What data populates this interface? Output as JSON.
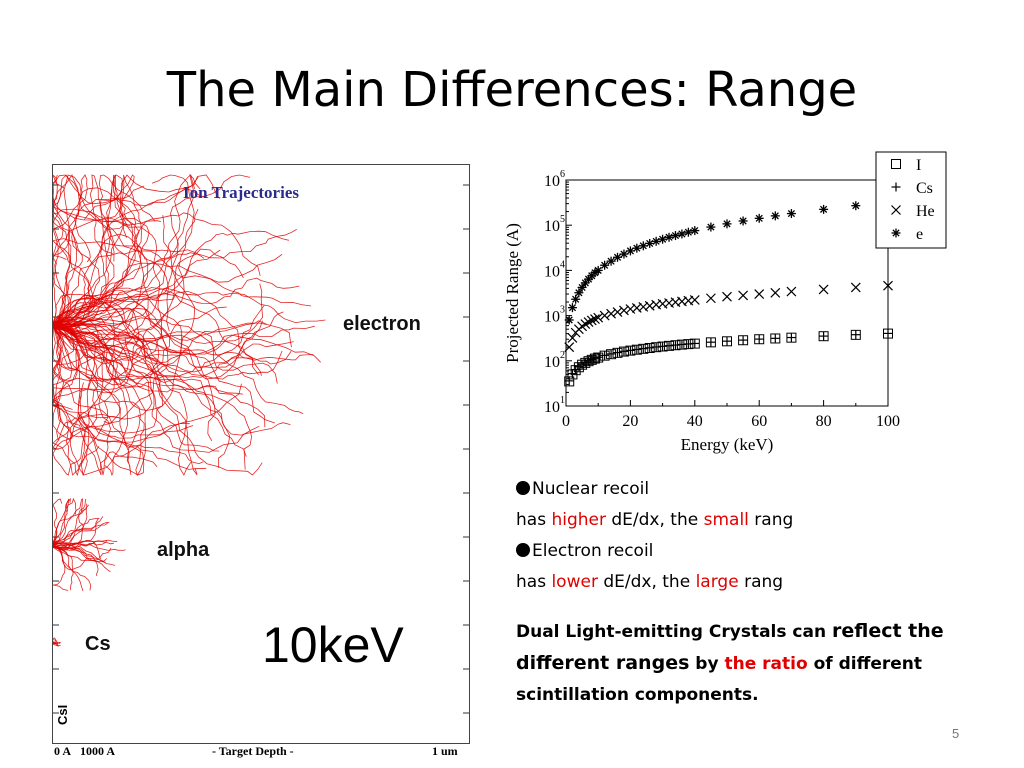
{
  "slide": {
    "title": "The Main Differences: Range",
    "page_number": "5"
  },
  "trajectory_panel": {
    "title": "Ion Trajectories",
    "labels": {
      "electron": "electron",
      "alpha": "alpha",
      "cs": "Cs",
      "material": "CsI"
    },
    "depth_axis": {
      "start": "0 A",
      "mid1": "1000 A",
      "caption": "- Target Depth -",
      "end": "1 um"
    },
    "energy_label": "10keV",
    "trace_color": "#e00000"
  },
  "chart_data": {
    "type": "scatter",
    "title": "",
    "xlabel": "Energy (keV)",
    "ylabel": "Projected Range (A)",
    "xlim": [
      0,
      100
    ],
    "ylim": [
      10,
      1000000
    ],
    "yscale": "log",
    "x_ticks": [
      0,
      20,
      40,
      60,
      80,
      100
    ],
    "y_ticks": [
      "10^1",
      "10^2",
      "10^3",
      "10^4",
      "10^5",
      "10^6"
    ],
    "legend_position": "top-right",
    "series": [
      {
        "name": "I",
        "marker": "square",
        "x": [
          1,
          2,
          3,
          4,
          5,
          6,
          7,
          8,
          9,
          10,
          12,
          14,
          16,
          18,
          20,
          22,
          24,
          26,
          28,
          30,
          32,
          34,
          36,
          38,
          40,
          45,
          50,
          55,
          60,
          65,
          70,
          80,
          90,
          100
        ],
        "y": [
          35,
          50,
          62,
          72,
          82,
          90,
          98,
          105,
          112,
          118,
          130,
          140,
          150,
          160,
          168,
          176,
          184,
          192,
          200,
          207,
          214,
          221,
          228,
          234,
          240,
          256,
          270,
          285,
          300,
          312,
          325,
          350,
          375,
          400
        ]
      },
      {
        "name": "Cs",
        "marker": "plus",
        "x": [
          1,
          2,
          3,
          4,
          5,
          6,
          7,
          8,
          9,
          10,
          12,
          14,
          16,
          18,
          20,
          22,
          24,
          26,
          28,
          30,
          32,
          34,
          36,
          38,
          40,
          45,
          50,
          55,
          60,
          65,
          70,
          80,
          90,
          100
        ],
        "y": [
          36,
          52,
          64,
          74,
          84,
          92,
          100,
          107,
          114,
          120,
          132,
          142,
          152,
          162,
          170,
          178,
          186,
          194,
          202,
          209,
          216,
          223,
          230,
          236,
          242,
          258,
          272,
          287,
          302,
          314,
          327,
          352,
          378,
          404
        ]
      },
      {
        "name": "He",
        "marker": "cross",
        "x": [
          1,
          2,
          3,
          4,
          5,
          6,
          7,
          8,
          9,
          10,
          12,
          14,
          16,
          18,
          20,
          22,
          24,
          26,
          28,
          30,
          32,
          34,
          36,
          38,
          40,
          45,
          50,
          55,
          60,
          65,
          70,
          80,
          90,
          100
        ],
        "y": [
          200,
          320,
          420,
          500,
          580,
          650,
          720,
          780,
          840,
          900,
          1000,
          1100,
          1200,
          1300,
          1400,
          1480,
          1560,
          1650,
          1740,
          1820,
          1900,
          1980,
          2060,
          2140,
          2220,
          2420,
          2620,
          2800,
          3000,
          3200,
          3400,
          3800,
          4200,
          4600
        ]
      },
      {
        "name": "e",
        "marker": "asterisk",
        "x": [
          1,
          2,
          3,
          4,
          5,
          6,
          7,
          8,
          9,
          10,
          12,
          14,
          16,
          18,
          20,
          22,
          24,
          26,
          28,
          30,
          32,
          34,
          36,
          38,
          40,
          45,
          50,
          55,
          60,
          65,
          70,
          80,
          90,
          100
        ],
        "y": [
          800,
          1500,
          2300,
          3200,
          4200,
          5300,
          6400,
          7600,
          8900,
          10000,
          13000,
          16000,
          19500,
          23000,
          27000,
          31000,
          35000,
          39500,
          44000,
          49000,
          54000,
          59000,
          64000,
          70000,
          76000,
          91000,
          107000,
          124000,
          142000,
          161000,
          181000,
          224000,
          270000,
          320000
        ]
      }
    ]
  },
  "text_block": {
    "b1_head": "Nuclear recoil",
    "b1_has": "has ",
    "b1_higher": "higher",
    "b1_mid": " dE/dx, the ",
    "b1_small": "small",
    "b1_end": " rang",
    "b2_head": "Electron recoil",
    "b2_has": "has ",
    "b2_lower": "lower",
    "b2_mid": " dE/dx, the ",
    "b2_large": "large",
    "b2_end": " rang",
    "p_a": "Dual Light-emitting Crystals can ",
    "p_b": "reflect the different ranges",
    "p_c": " by ",
    "p_d": "the ratio",
    "p_e": " of different scintillation components."
  }
}
